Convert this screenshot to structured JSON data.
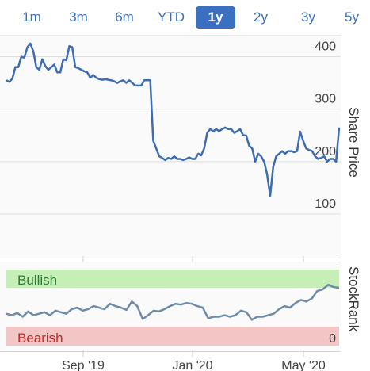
{
  "range_tabs": [
    {
      "label": "1m",
      "active": false
    },
    {
      "label": "3m",
      "active": false
    },
    {
      "label": "6m",
      "active": false
    },
    {
      "label": "YTD",
      "active": false
    },
    {
      "label": "1y",
      "active": true
    },
    {
      "label": "2y",
      "active": false
    },
    {
      "label": "3y",
      "active": false
    },
    {
      "label": "5y",
      "active": false
    }
  ],
  "colors": {
    "accent": "#3b6fc0",
    "line": "#3d6cb5",
    "rank_line": "#6e8ca8",
    "bullish_band": "#c6efb8",
    "bullish_text": "#2e7d32",
    "bearish_band": "#f3c6c6",
    "bearish_text": "#c62828"
  },
  "chart_data": [
    {
      "type": "line",
      "ylabel": "Share Price",
      "ylim": [
        20,
        440
      ],
      "yticks": [
        100,
        200,
        300,
        400
      ],
      "xticks": [
        "Sep '19",
        "Jan '20",
        "May '20"
      ],
      "series": [
        {
          "values": [
            355,
            352,
            358,
            380,
            380,
            400,
            398,
            418,
            425,
            410,
            380,
            375,
            395,
            382,
            375,
            380,
            385,
            370,
            370,
            395,
            393,
            420,
            418,
            380,
            378,
            375,
            372,
            370,
            360,
            365,
            360,
            357,
            356,
            357,
            356,
            355,
            353,
            350,
            353,
            355,
            350,
            355,
            350,
            345,
            345,
            345,
            355,
            355,
            355,
            240,
            225,
            210,
            207,
            203,
            207,
            205,
            210,
            205,
            205,
            203,
            205,
            208,
            205,
            205,
            215,
            212,
            225,
            255,
            262,
            258,
            262,
            258,
            262,
            265,
            262,
            262,
            255,
            258,
            262,
            250,
            250,
            230,
            225,
            200,
            215,
            210,
            200,
            175,
            135,
            190,
            210,
            215,
            220,
            215,
            220,
            220,
            218,
            220,
            257,
            240,
            225,
            222,
            220,
            210,
            205,
            207,
            210,
            200,
            205,
            205,
            200,
            265
          ]
        }
      ]
    },
    {
      "type": "line",
      "ylabel": "StockRank",
      "band_top_label": "Bullish",
      "band_bottom_label": "Bearish",
      "ylim": [
        0,
        100
      ],
      "yticks": [
        0
      ],
      "xticks": [
        "Sep '19",
        "Jan '20",
        "May '20"
      ],
      "series": [
        {
          "values": [
            42,
            40,
            43,
            38,
            45,
            40,
            42,
            44,
            40,
            46,
            44,
            42,
            48,
            50,
            46,
            48,
            52,
            50,
            48,
            55,
            52,
            50,
            47,
            58,
            52,
            35,
            40,
            46,
            45,
            48,
            52,
            55,
            54,
            56,
            55,
            52,
            50,
            36,
            38,
            38,
            40,
            38,
            40,
            46,
            44,
            34,
            38,
            38,
            40,
            42,
            48,
            52,
            50,
            56,
            60,
            58,
            62,
            72,
            74,
            80,
            77,
            76
          ]
        }
      ]
    }
  ]
}
